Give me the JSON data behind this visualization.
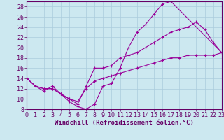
{
  "xlabel": "Windchill (Refroidissement éolien,°C)",
  "background_color": "#cce8f0",
  "grid_color": "#aaccdd",
  "line_color": "#990099",
  "xlim": [
    0,
    23
  ],
  "ylim": [
    8,
    29
  ],
  "xticks": [
    0,
    1,
    2,
    3,
    4,
    5,
    6,
    7,
    8,
    9,
    10,
    11,
    12,
    13,
    14,
    15,
    16,
    17,
    18,
    19,
    20,
    21,
    22,
    23
  ],
  "yticks": [
    8,
    10,
    12,
    14,
    16,
    18,
    20,
    22,
    24,
    26,
    28
  ],
  "curve1_x": [
    0,
    1,
    2,
    3,
    4,
    5,
    6,
    7,
    8,
    9,
    10,
    11,
    12,
    13,
    14,
    15,
    16,
    17,
    23
  ],
  "curve1_y": [
    14,
    12.5,
    11.5,
    12.5,
    11,
    9.5,
    8.5,
    8,
    9,
    12.5,
    13,
    16,
    20,
    23,
    24.5,
    26.5,
    28.5,
    29,
    19
  ],
  "curve2_x": [
    0,
    1,
    2,
    3,
    4,
    5,
    6,
    7,
    8,
    9,
    10,
    11,
    12,
    13,
    14,
    15,
    16,
    17,
    18,
    19,
    20,
    21,
    22,
    23
  ],
  "curve2_y": [
    14,
    12.5,
    12,
    12,
    11,
    10,
    9,
    12.5,
    16,
    16,
    16.5,
    18,
    18.5,
    19,
    20,
    21,
    22,
    23,
    23.5,
    24,
    25,
    23.5,
    21,
    19
  ],
  "curve3_x": [
    0,
    1,
    2,
    3,
    4,
    5,
    6,
    7,
    8,
    9,
    10,
    11,
    12,
    13,
    14,
    15,
    16,
    17,
    18,
    19,
    20,
    21,
    22,
    23
  ],
  "curve3_y": [
    14,
    12.5,
    12,
    12,
    11,
    10,
    9.5,
    12,
    13.5,
    14,
    14.5,
    15,
    15.5,
    16,
    16.5,
    17,
    17.5,
    18,
    18,
    18.5,
    18.5,
    18.5,
    18.5,
    19
  ],
  "tick_fontsize": 6,
  "xlabel_fontsize": 6.5
}
